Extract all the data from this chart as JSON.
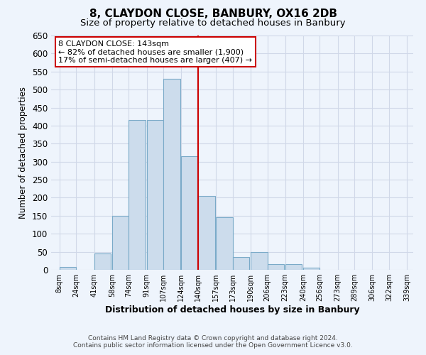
{
  "title": "8, CLAYDON CLOSE, BANBURY, OX16 2DB",
  "subtitle": "Size of property relative to detached houses in Banbury",
  "xlabel": "Distribution of detached houses by size in Banbury",
  "ylabel": "Number of detached properties",
  "bar_color": "#ccdcec",
  "bar_edge_color": "#7aaac8",
  "grid_color": "#d0d8e8",
  "bins_left_edges": [
    8,
    24,
    41,
    58,
    74,
    91,
    107,
    124,
    140,
    157,
    173,
    190,
    206,
    223,
    240,
    256,
    273,
    289,
    306,
    322
  ],
  "bin_width": 16,
  "bar_heights": [
    8,
    0,
    45,
    150,
    415,
    415,
    530,
    315,
    205,
    145,
    35,
    50,
    15,
    15,
    5,
    0,
    0,
    0,
    0,
    0
  ],
  "xtick_labels": [
    "8sqm",
    "24sqm",
    "41sqm",
    "58sqm",
    "74sqm",
    "91sqm",
    "107sqm",
    "124sqm",
    "140sqm",
    "157sqm",
    "173sqm",
    "190sqm",
    "206sqm",
    "223sqm",
    "240sqm",
    "256sqm",
    "273sqm",
    "289sqm",
    "306sqm",
    "322sqm",
    "339sqm"
  ],
  "xtick_positions": [
    8,
    24,
    41,
    58,
    74,
    91,
    107,
    124,
    140,
    157,
    173,
    190,
    206,
    223,
    240,
    256,
    273,
    289,
    306,
    322,
    339
  ],
  "ylim": [
    0,
    650
  ],
  "xlim": [
    0,
    345
  ],
  "vline_x": 140,
  "vline_color": "#cc0000",
  "annotation_title": "8 CLAYDON CLOSE: 143sqm",
  "annotation_line1": "← 82% of detached houses are smaller (1,900)",
  "annotation_line2": "17% of semi-detached houses are larger (407) →",
  "annotation_box_color": "#ffffff",
  "annotation_box_edge": "#cc0000",
  "footnote1": "Contains HM Land Registry data © Crown copyright and database right 2024.",
  "footnote2": "Contains public sector information licensed under the Open Government Licence v3.0.",
  "title_fontsize": 11,
  "subtitle_fontsize": 9.5,
  "ytick_step": 50,
  "background_color": "#eef4fc"
}
